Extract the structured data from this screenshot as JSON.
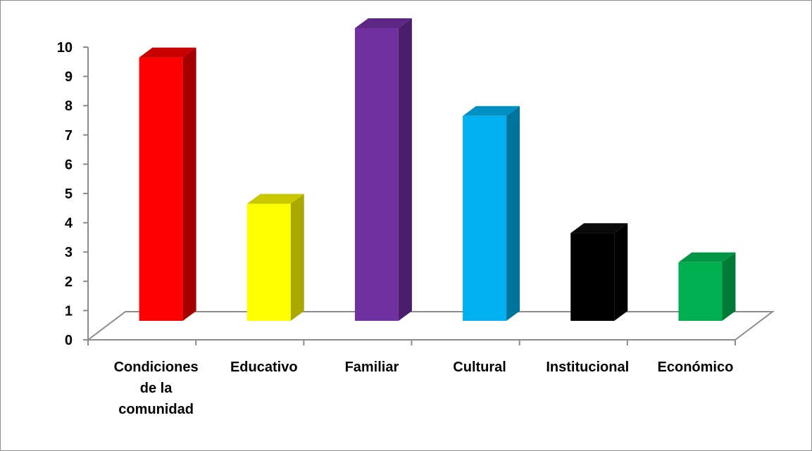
{
  "chart_data": {
    "type": "bar",
    "categories": [
      "Condiciones de la comunidad",
      "Educativo",
      "Familiar",
      "Cultural",
      "Institucional",
      "Económico"
    ],
    "category_lines": [
      [
        "Condiciones",
        "de la",
        "comunidad"
      ],
      [
        "Educativo"
      ],
      [
        "Familiar"
      ],
      [
        "Cultural"
      ],
      [
        "Institucional"
      ],
      [
        "Económico"
      ]
    ],
    "values": [
      9,
      4,
      10,
      7,
      3,
      2
    ],
    "ylim": [
      0,
      10
    ],
    "yticks": [
      0,
      1,
      2,
      3,
      4,
      5,
      6,
      7,
      8,
      9,
      10
    ],
    "title": "",
    "xlabel": "",
    "ylabel": "",
    "grid": false,
    "legend": "none",
    "style": "3d-column",
    "colors": [
      {
        "front": "#ff0000",
        "side": "#a50000",
        "top": "#c80000"
      },
      {
        "front": "#ffff00",
        "side": "#a8a800",
        "top": "#c8c800"
      },
      {
        "front": "#7030a0",
        "side": "#4a1e6a",
        "top": "#5c2785"
      },
      {
        "front": "#00b0f0",
        "side": "#00739c",
        "top": "#0090c4"
      },
      {
        "front": "#000000",
        "side": "#000000",
        "top": "#0a0a0a"
      },
      {
        "front": "#00b050",
        "side": "#007a37",
        "top": "#009644"
      }
    ],
    "axis_color": "#8c8c8c"
  }
}
